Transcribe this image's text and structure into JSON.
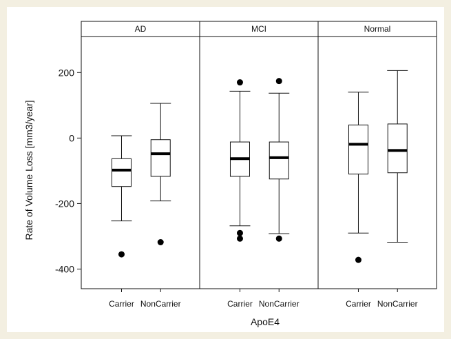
{
  "chart_data": {
    "type": "boxplot",
    "xlabel": "ApoE4",
    "ylabel": "Rate of Volume Loss [mm3/year]",
    "ylim": [
      -460,
      310
    ],
    "yticks": [
      200,
      0,
      -200,
      -400
    ],
    "ytick_labels": [
      "200",
      "0",
      "-200",
      "-400"
    ],
    "categories": [
      "Carrier",
      "NonCarrier"
    ],
    "panels": [
      {
        "title": "AD",
        "boxes": [
          {
            "category": "Carrier",
            "whisker_low": -253,
            "q1": -148,
            "median": -98,
            "q3": -63,
            "whisker_high": 7,
            "outliers": [
              -355
            ]
          },
          {
            "category": "NonCarrier",
            "whisker_low": -192,
            "q1": -117,
            "median": -48,
            "q3": -5,
            "whisker_high": 106,
            "outliers": [
              -318
            ]
          }
        ]
      },
      {
        "title": "MCI",
        "boxes": [
          {
            "category": "Carrier",
            "whisker_low": -268,
            "q1": -117,
            "median": -63,
            "q3": -12,
            "whisker_high": 143,
            "outliers": [
              170,
              -290,
              -307
            ]
          },
          {
            "category": "NonCarrier",
            "whisker_low": -292,
            "q1": -125,
            "median": -60,
            "q3": -12,
            "whisker_high": 137,
            "outliers": [
              174,
              -307
            ]
          }
        ]
      },
      {
        "title": "Normal",
        "boxes": [
          {
            "category": "Carrier",
            "whisker_low": -290,
            "q1": -110,
            "median": -19,
            "q3": 40,
            "whisker_high": 140,
            "outliers": [
              -372
            ]
          },
          {
            "category": "NonCarrier",
            "whisker_low": -318,
            "q1": -106,
            "median": -38,
            "q3": 43,
            "whisker_high": 206,
            "outliers": []
          }
        ]
      }
    ]
  }
}
